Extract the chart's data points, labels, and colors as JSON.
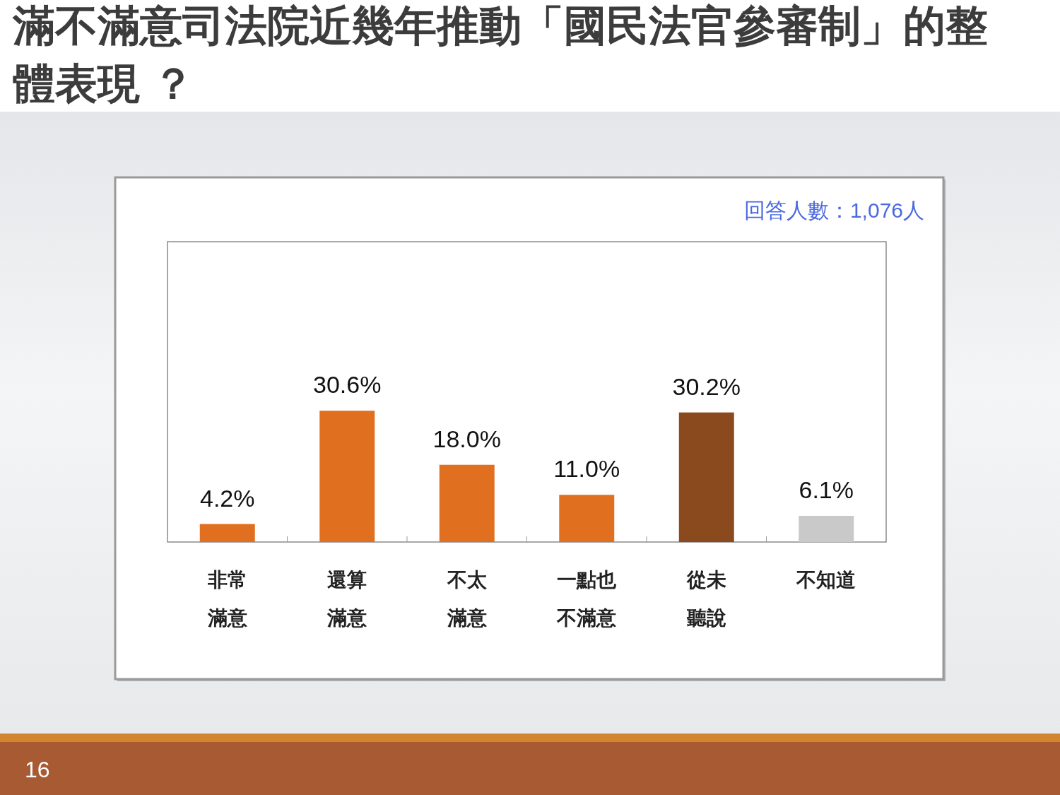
{
  "chart_data": {
    "type": "bar",
    "title": "滿不滿意司法院近幾年推動「國民法官參審制」的整體表現 ？",
    "categories": [
      "非常滿意",
      "還算滿意",
      "不太滿意",
      "一點也不滿意",
      "從未聽說",
      "不知道"
    ],
    "values": [
      4.2,
      30.6,
      18.0,
      11.0,
      30.2,
      6.1
    ],
    "colors": [
      "#e07020",
      "#e07020",
      "#e07020",
      "#e07020",
      "#8b4a1e",
      "#c9c9c9"
    ],
    "value_labels": [
      "4.2%",
      "30.6%",
      "18.0%",
      "11.0%",
      "30.2%",
      "6.1%"
    ],
    "ylim": [
      0,
      70
    ],
    "tick_labels": "x",
    "annotations": [
      "回答人數：1,076人",
      "16"
    ]
  }
}
